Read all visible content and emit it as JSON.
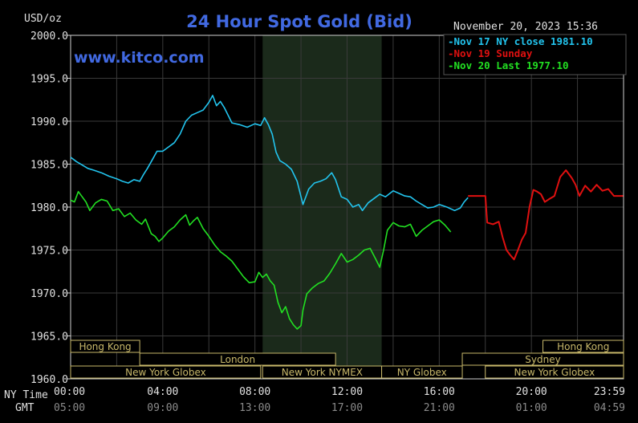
{
  "header": {
    "title": "24 Hour Spot Gold (Bid)",
    "unit": "USD/oz",
    "datetime": "November 20, 2023 15:36",
    "watermark": "www.kitco.com"
  },
  "legend": [
    {
      "text": "Nov 17 NY close 1981.10",
      "color": "#22c4ee"
    },
    {
      "text": "Nov 19 Sunday",
      "color": "#e01010"
    },
    {
      "text": "Nov 20 Last 1977.10",
      "color": "#22e022"
    }
  ],
  "axis_labels": {
    "ny_time": "NY Time",
    "gmt": "GMT"
  },
  "colors": {
    "background": "#000000",
    "grid": "#3a3a3a",
    "axis_text": "#e0e0e0",
    "title": "#4169e1",
    "session_box": "#c8b86a",
    "highlight": "#1b2a1b"
  },
  "sessions": [
    {
      "row": 0,
      "label": "Hong Kong",
      "start": "00:00",
      "end": "03:00"
    },
    {
      "row": 0,
      "label": "Hong Kong",
      "start": "20:30",
      "end": "24:00"
    },
    {
      "row": 1,
      "label": "London",
      "start": "03:00",
      "end": "11:30"
    },
    {
      "row": 1,
      "label": "Sydney",
      "start": "17:00",
      "end": "24:00"
    },
    {
      "row": 2,
      "label": "New York Globex",
      "start": "00:00",
      "end": "08:15"
    },
    {
      "row": 2,
      "label": "New York NYMEX",
      "start": "08:20",
      "end": "13:30"
    },
    {
      "row": 2,
      "label": "NY Globex",
      "start": "13:30",
      "end": "17:00"
    },
    {
      "row": 2,
      "label": "New York Globex",
      "start": "18:00",
      "end": "24:00"
    }
  ],
  "chart_data": {
    "type": "line",
    "title": "24 Hour Spot Gold (Bid)",
    "ylabel": "USD/oz",
    "ylim": [
      1960,
      2000
    ],
    "yticks": [
      1960,
      1965,
      1970,
      1975,
      1980,
      1985,
      1990,
      1995,
      2000
    ],
    "ytick_labels": [
      "1960.0",
      "1965.0",
      "1970.0",
      "1975.0",
      "1980.0",
      "1985.0",
      "1990.0",
      "1995.0",
      "2000.0"
    ],
    "xlim": [
      "00:00",
      "24:00"
    ],
    "xticks_ny": [
      "00:00",
      "04:00",
      "08:00",
      "12:00",
      "16:00",
      "20:00",
      "23:59"
    ],
    "xticks_gmt": [
      "05:00",
      "09:00",
      "13:00",
      "17:00",
      "21:00",
      "01:00",
      "04:59"
    ],
    "highlight_range": [
      "08:20",
      "13:30"
    ],
    "grid": true,
    "series": [
      {
        "name": "Nov 17 NY close 1981.10",
        "color": "#22c4ee",
        "points": [
          [
            "00:00",
            1985.8
          ],
          [
            "00:15",
            1985.3
          ],
          [
            "00:30",
            1984.9
          ],
          [
            "00:45",
            1984.5
          ],
          [
            "01:00",
            1984.3
          ],
          [
            "01:20",
            1984.0
          ],
          [
            "01:40",
            1983.6
          ],
          [
            "02:00",
            1983.3
          ],
          [
            "02:15",
            1983.0
          ],
          [
            "02:30",
            1982.8
          ],
          [
            "02:45",
            1983.2
          ],
          [
            "03:00",
            1983.0
          ],
          [
            "03:10",
            1983.8
          ],
          [
            "03:20",
            1984.5
          ],
          [
            "03:30",
            1985.3
          ],
          [
            "03:45",
            1986.5
          ],
          [
            "04:00",
            1986.5
          ],
          [
            "04:15",
            1987.0
          ],
          [
            "04:30",
            1987.5
          ],
          [
            "04:45",
            1988.5
          ],
          [
            "05:00",
            1990.0
          ],
          [
            "05:15",
            1990.7
          ],
          [
            "05:30",
            1991.0
          ],
          [
            "05:45",
            1991.3
          ],
          [
            "06:00",
            1992.2
          ],
          [
            "06:10",
            1993.0
          ],
          [
            "06:20",
            1991.8
          ],
          [
            "06:30",
            1992.3
          ],
          [
            "06:40",
            1991.6
          ],
          [
            "06:50",
            1990.7
          ],
          [
            "07:00",
            1989.8
          ],
          [
            "07:20",
            1989.6
          ],
          [
            "07:40",
            1989.3
          ],
          [
            "08:00",
            1989.7
          ],
          [
            "08:15",
            1989.5
          ],
          [
            "08:25",
            1990.4
          ],
          [
            "08:35",
            1989.6
          ],
          [
            "08:45",
            1988.5
          ],
          [
            "08:55",
            1986.4
          ],
          [
            "09:05",
            1985.4
          ],
          [
            "09:20",
            1985.0
          ],
          [
            "09:35",
            1984.4
          ],
          [
            "09:50",
            1983.0
          ],
          [
            "10:05",
            1980.3
          ],
          [
            "10:20",
            1982.1
          ],
          [
            "10:35",
            1982.8
          ],
          [
            "10:50",
            1983.0
          ],
          [
            "11:05",
            1983.3
          ],
          [
            "11:20",
            1984.0
          ],
          [
            "11:30",
            1983.2
          ],
          [
            "11:45",
            1981.2
          ],
          [
            "12:00",
            1980.9
          ],
          [
            "12:15",
            1980.0
          ],
          [
            "12:30",
            1980.3
          ],
          [
            "12:40",
            1979.6
          ],
          [
            "12:55",
            1980.5
          ],
          [
            "13:10",
            1981.0
          ],
          [
            "13:25",
            1981.5
          ],
          [
            "13:40",
            1981.2
          ],
          [
            "14:00",
            1981.9
          ],
          [
            "14:15",
            1981.6
          ],
          [
            "14:30",
            1981.3
          ],
          [
            "14:45",
            1981.2
          ],
          [
            "15:00",
            1980.7
          ],
          [
            "15:15",
            1980.3
          ],
          [
            "15:30",
            1979.9
          ],
          [
            "15:45",
            1980.0
          ],
          [
            "16:00",
            1980.3
          ],
          [
            "16:20",
            1980.0
          ],
          [
            "16:40",
            1979.6
          ],
          [
            "16:55",
            1979.9
          ],
          [
            "17:05",
            1980.6
          ],
          [
            "17:15",
            1981.1
          ]
        ]
      },
      {
        "name": "Nov 19 Sunday",
        "color": "#e01010",
        "points": [
          [
            "17:15",
            1981.3
          ],
          [
            "17:40",
            1981.3
          ],
          [
            "18:00",
            1981.3
          ],
          [
            "18:05",
            1978.2
          ],
          [
            "18:20",
            1978.0
          ],
          [
            "18:35",
            1978.3
          ],
          [
            "18:45",
            1976.5
          ],
          [
            "18:55",
            1975.0
          ],
          [
            "19:05",
            1974.4
          ],
          [
            "19:15",
            1973.9
          ],
          [
            "19:25",
            1975.0
          ],
          [
            "19:35",
            1976.2
          ],
          [
            "19:45",
            1977.0
          ],
          [
            "19:55",
            1980.0
          ],
          [
            "20:05",
            1982.0
          ],
          [
            "20:15",
            1981.8
          ],
          [
            "20:25",
            1981.5
          ],
          [
            "20:35",
            1980.6
          ],
          [
            "20:45",
            1980.9
          ],
          [
            "21:00",
            1981.3
          ],
          [
            "21:15",
            1983.5
          ],
          [
            "21:30",
            1984.3
          ],
          [
            "21:45",
            1983.4
          ],
          [
            "21:55",
            1982.6
          ],
          [
            "22:05",
            1981.3
          ],
          [
            "22:20",
            1982.5
          ],
          [
            "22:35",
            1981.8
          ],
          [
            "22:50",
            1982.6
          ],
          [
            "23:05",
            1981.9
          ],
          [
            "23:20",
            1982.1
          ],
          [
            "23:35",
            1981.3
          ],
          [
            "23:59",
            1981.3
          ]
        ]
      },
      {
        "name": "Nov 20 Last 1977.10",
        "color": "#22e022",
        "points": [
          [
            "00:00",
            1980.8
          ],
          [
            "00:10",
            1980.6
          ],
          [
            "00:20",
            1981.8
          ],
          [
            "00:30",
            1981.2
          ],
          [
            "00:40",
            1980.6
          ],
          [
            "00:50",
            1979.6
          ],
          [
            "01:05",
            1980.5
          ],
          [
            "01:20",
            1980.9
          ],
          [
            "01:35",
            1980.7
          ],
          [
            "01:50",
            1979.6
          ],
          [
            "02:05",
            1979.8
          ],
          [
            "02:20",
            1978.9
          ],
          [
            "02:35",
            1979.3
          ],
          [
            "02:50",
            1978.5
          ],
          [
            "03:05",
            1978.0
          ],
          [
            "03:15",
            1978.6
          ],
          [
            "03:30",
            1976.9
          ],
          [
            "03:40",
            1976.6
          ],
          [
            "03:50",
            1976.0
          ],
          [
            "04:00",
            1976.4
          ],
          [
            "04:15",
            1977.2
          ],
          [
            "04:30",
            1977.7
          ],
          [
            "04:45",
            1978.5
          ],
          [
            "05:00",
            1979.1
          ],
          [
            "05:10",
            1977.9
          ],
          [
            "05:20",
            1978.4
          ],
          [
            "05:30",
            1978.8
          ],
          [
            "05:45",
            1977.5
          ],
          [
            "06:00",
            1976.6
          ],
          [
            "06:15",
            1975.6
          ],
          [
            "06:30",
            1974.8
          ],
          [
            "06:45",
            1974.3
          ],
          [
            "07:00",
            1973.7
          ],
          [
            "07:15",
            1972.8
          ],
          [
            "07:30",
            1971.9
          ],
          [
            "07:45",
            1971.2
          ],
          [
            "08:00",
            1971.3
          ],
          [
            "08:10",
            1972.4
          ],
          [
            "08:20",
            1971.8
          ],
          [
            "08:30",
            1972.2
          ],
          [
            "08:40",
            1971.4
          ],
          [
            "08:50",
            1970.9
          ],
          [
            "09:00",
            1968.9
          ],
          [
            "09:10",
            1967.7
          ],
          [
            "09:20",
            1968.4
          ],
          [
            "09:30",
            1967.0
          ],
          [
            "09:40",
            1966.3
          ],
          [
            "09:50",
            1965.8
          ],
          [
            "10:00",
            1966.2
          ],
          [
            "10:05",
            1968.0
          ],
          [
            "10:15",
            1969.9
          ],
          [
            "10:30",
            1970.6
          ],
          [
            "10:45",
            1971.1
          ],
          [
            "11:00",
            1971.4
          ],
          [
            "11:15",
            1972.3
          ],
          [
            "11:30",
            1973.4
          ],
          [
            "11:45",
            1974.6
          ],
          [
            "12:00",
            1973.6
          ],
          [
            "12:15",
            1973.9
          ],
          [
            "12:30",
            1974.4
          ],
          [
            "12:45",
            1975.0
          ],
          [
            "13:00",
            1975.2
          ],
          [
            "13:15",
            1973.9
          ],
          [
            "13:25",
            1973.0
          ],
          [
            "13:35",
            1975.0
          ],
          [
            "13:45",
            1977.3
          ],
          [
            "14:00",
            1978.2
          ],
          [
            "14:15",
            1977.8
          ],
          [
            "14:30",
            1977.7
          ],
          [
            "14:45",
            1978.0
          ],
          [
            "15:00",
            1976.6
          ],
          [
            "15:15",
            1977.3
          ],
          [
            "15:30",
            1977.8
          ],
          [
            "15:45",
            1978.3
          ],
          [
            "16:00",
            1978.5
          ],
          [
            "16:15",
            1977.9
          ],
          [
            "16:30",
            1977.1
          ]
        ]
      }
    ]
  }
}
